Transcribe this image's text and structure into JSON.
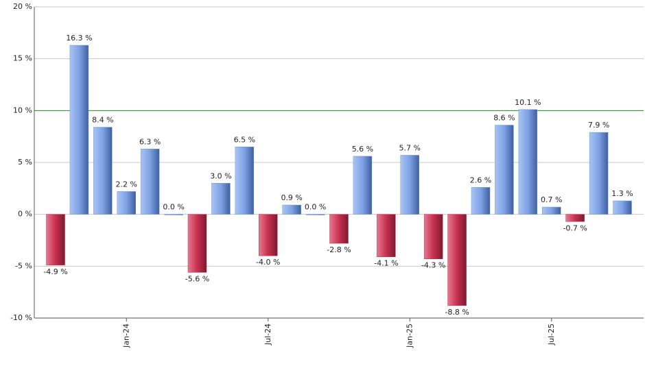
{
  "chart_data": {
    "type": "bar",
    "categories": [
      null,
      null,
      null,
      "Jan-24",
      null,
      null,
      null,
      null,
      null,
      "Jul-24",
      null,
      null,
      null,
      null,
      null,
      "Jan-25",
      null,
      null,
      null,
      null,
      null,
      "Jul-25",
      null,
      null,
      null
    ],
    "values": [
      -4.9,
      16.3,
      8.4,
      2.2,
      6.3,
      0.0,
      -5.6,
      3.0,
      6.5,
      -4.0,
      0.9,
      0.0,
      -2.8,
      5.6,
      -4.1,
      5.7,
      -4.3,
      -8.8,
      2.6,
      8.6,
      10.1,
      0.7,
      -0.7,
      7.9,
      1.3
    ],
    "value_labels": [
      "-4.9 %",
      "16.3 %",
      "8.4 %",
      "2.2 %",
      "6.3 %",
      "0.0 %",
      "-5.6 %",
      "3.0 %",
      "6.5 %",
      "-4.0 %",
      "0.9 %",
      "0.0 %",
      "-2.8 %",
      "5.6 %",
      "-4.1 %",
      "5.7 %",
      "-4.3 %",
      "-8.8 %",
      "2.6 %",
      "8.6 %",
      "10.1 %",
      "0.7 %",
      "-0.7 %",
      "7.9 %",
      "1.3 %"
    ],
    "positive_color": "#6f96dc",
    "negative_color": "#c8304f",
    "ylim": [
      -10,
      20
    ],
    "yticks": [
      {
        "value": -10,
        "label": "-10 %"
      },
      {
        "value": -5,
        "label": "-5 %"
      },
      {
        "value": 0,
        "label": "0 %"
      },
      {
        "value": 5,
        "label": "5 %"
      },
      {
        "value": 10,
        "label": "10 %"
      },
      {
        "value": 15,
        "label": "15 %"
      },
      {
        "value": 20,
        "label": "20 %"
      }
    ],
    "grid": true,
    "reference_line": {
      "value": 10,
      "color": "#2e8b2e"
    }
  }
}
